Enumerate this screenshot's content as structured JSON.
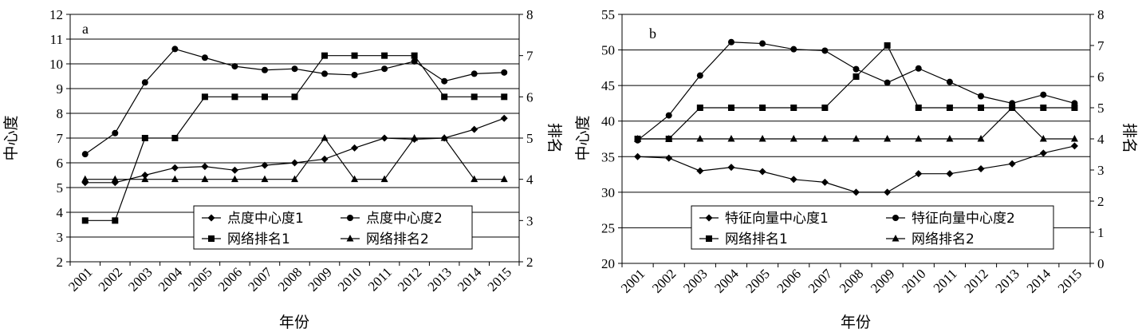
{
  "chart_data": [
    {
      "type": "line",
      "panel_label": "a",
      "xlabel": "年份",
      "ylabel": "中心度",
      "y2label": "排名",
      "categories": [
        "2001",
        "2002",
        "2003",
        "2004",
        "2005",
        "2006",
        "2007",
        "2008",
        "2009",
        "2010",
        "2011",
        "2012",
        "2013",
        "2014",
        "2015"
      ],
      "ylim": [
        2,
        12
      ],
      "yticks": [
        2,
        3,
        4,
        5,
        6,
        7,
        8,
        9,
        10,
        11,
        12
      ],
      "y2lim": [
        2,
        8
      ],
      "y2ticks": [
        2,
        3,
        4,
        5,
        6,
        7,
        8
      ],
      "grid": true,
      "legend_position": "bottom-right",
      "legend_columns": 2,
      "series": [
        {
          "name": "点度中心度1",
          "marker": "diamond",
          "axis": "left",
          "values": [
            5.2,
            5.2,
            5.5,
            5.8,
            5.85,
            5.7,
            5.9,
            6.0,
            6.15,
            6.6,
            7.0,
            6.95,
            7.0,
            7.35,
            7.8
          ]
        },
        {
          "name": "点度中心度2",
          "marker": "circle",
          "axis": "left",
          "values": [
            6.35,
            7.2,
            9.25,
            10.6,
            10.25,
            9.9,
            9.75,
            9.8,
            9.6,
            9.55,
            9.8,
            10.1,
            9.3,
            9.6,
            9.65
          ]
        },
        {
          "name": "网络排名1",
          "marker": "square",
          "axis": "right",
          "values": [
            3,
            3,
            5,
            5,
            6,
            6,
            6,
            6,
            7,
            7,
            7,
            7,
            6,
            6,
            6
          ]
        },
        {
          "name": "网络排名2",
          "marker": "triangle",
          "axis": "right",
          "values": [
            4,
            4,
            4,
            4,
            4,
            4,
            4,
            4,
            5,
            4,
            4,
            5,
            5,
            4,
            4
          ]
        }
      ]
    },
    {
      "type": "line",
      "panel_label": "b",
      "xlabel": "年份",
      "ylabel": "中心度",
      "y2label": "排名",
      "categories": [
        "2001",
        "2002",
        "2003",
        "2004",
        "2005",
        "2006",
        "2007",
        "2008",
        "2009",
        "2010",
        "2011",
        "2012",
        "2013",
        "2014",
        "2015"
      ],
      "ylim": [
        20,
        55
      ],
      "yticks": [
        20,
        25,
        30,
        35,
        40,
        45,
        50,
        55
      ],
      "y2lim": [
        0,
        8
      ],
      "y2ticks": [
        0,
        1,
        2,
        3,
        4,
        5,
        6,
        7,
        8
      ],
      "grid": true,
      "legend_position": "bottom-right",
      "legend_columns": 2,
      "series": [
        {
          "name": "特征向量中心度1",
          "marker": "diamond",
          "axis": "left",
          "values": [
            35.0,
            34.8,
            33.0,
            33.5,
            32.9,
            31.8,
            31.4,
            30.0,
            30.0,
            32.6,
            32.6,
            33.3,
            34.0,
            35.5,
            36.5
          ]
        },
        {
          "name": "特征向量中心度2",
          "marker": "circle",
          "axis": "left",
          "values": [
            37.3,
            40.8,
            46.4,
            51.1,
            50.9,
            50.1,
            49.9,
            47.3,
            45.4,
            47.4,
            45.5,
            43.5,
            42.5,
            43.7,
            42.5
          ]
        },
        {
          "name": "网络排名1",
          "marker": "square",
          "axis": "right",
          "values": [
            4,
            4,
            5,
            5,
            5,
            5,
            5,
            6,
            7,
            5,
            5,
            5,
            5,
            5,
            5
          ]
        },
        {
          "name": "网络排名2",
          "marker": "triangle",
          "axis": "right",
          "values": [
            4,
            4,
            4,
            4,
            4,
            4,
            4,
            4,
            4,
            4,
            4,
            4,
            5,
            4,
            4
          ]
        }
      ]
    }
  ]
}
